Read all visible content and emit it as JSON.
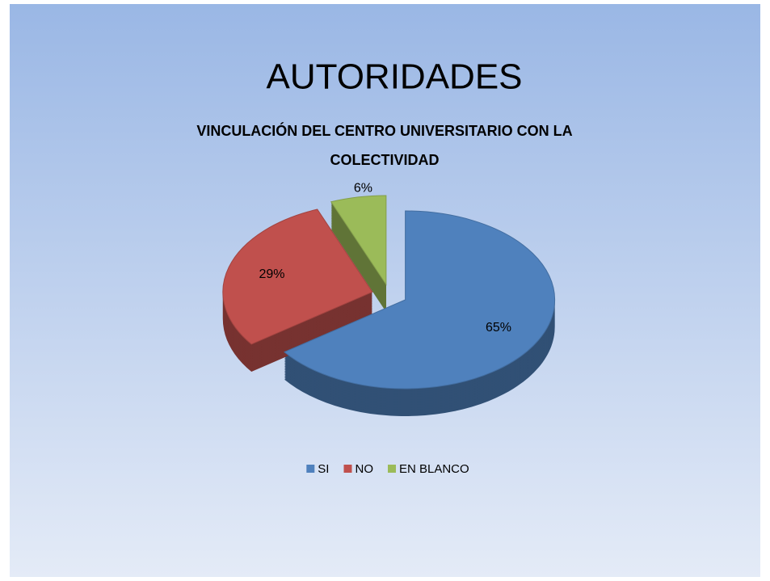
{
  "slide_title": "AUTORIDADES",
  "chart_data": {
    "type": "pie3d",
    "title": "VINCULACIÓN DEL CENTRO UNIVERSITARIO CON LA COLECTIVIDAD",
    "categories": [
      "SI",
      "NO",
      "EN BLANCO"
    ],
    "values": [
      65,
      29,
      6
    ],
    "value_labels": [
      "65%",
      "29%",
      "6%"
    ],
    "colors": [
      "#4f81bd",
      "#c0504d",
      "#9bbb59"
    ],
    "legend": "bottom"
  }
}
